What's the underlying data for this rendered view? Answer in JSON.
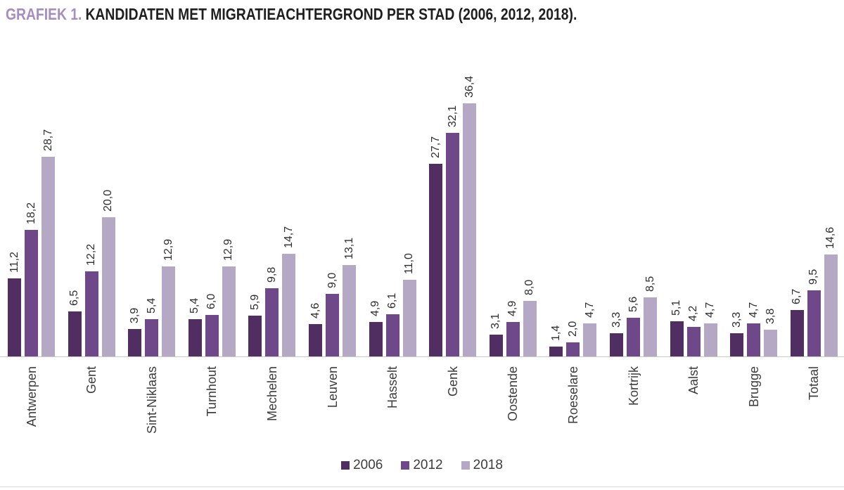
{
  "title": {
    "prefix": "GRAFIEK 1.",
    "text": "KANDIDATEN MET MIGRATIEACHTERGROND PER STAD (2006, 2012, 2018)."
  },
  "colors": {
    "title_prefix": "#a78cc1",
    "title_text": "#1f1f1f",
    "axis_line": "#c9c9c9",
    "value_label_text": "#2e2e2e",
    "category_label_text": "#3d3d3d"
  },
  "chart_data": {
    "type": "bar",
    "title": "GRAFIEK 1. KANDIDATEN MET MIGRATIEACHTERGROND PER STAD (2006, 2012, 2018).",
    "categories": [
      "Antwerpen",
      "Gent",
      "Sint-Niklaas",
      "Turnhout",
      "Mechelen",
      "Leuven",
      "Hasselt",
      "Genk",
      "Oostende",
      "Roeselare",
      "Kortrijk",
      "Aalst",
      "Brugge",
      "Totaal"
    ],
    "series": [
      {
        "name": "2006",
        "color": "#502e61",
        "values": [
          11.2,
          6.5,
          3.9,
          5.4,
          5.9,
          4.6,
          4.9,
          27.7,
          3.1,
          1.4,
          3.3,
          5.1,
          3.3,
          6.7
        ]
      },
      {
        "name": "2012",
        "color": "#6f4889",
        "values": [
          18.2,
          12.2,
          5.4,
          6.0,
          9.8,
          9.0,
          6.1,
          32.1,
          4.9,
          2.0,
          5.6,
          4.2,
          4.7,
          9.5
        ]
      },
      {
        "name": "2018",
        "color": "#b4a8c5",
        "values": [
          28.7,
          20.0,
          12.9,
          12.9,
          14.7,
          13.1,
          11.0,
          36.4,
          8.0,
          4.7,
          8.5,
          4.7,
          3.8,
          14.6
        ]
      }
    ],
    "xlabel": "",
    "ylabel": "",
    "ylim": [
      0,
      36.4
    ],
    "grid": false,
    "y_axis_visible": false,
    "value_labels": "above-bars-rotated-90",
    "value_label_format": "decimal-comma-1",
    "category_label_rotation": 90,
    "legend_position": "bottom-center",
    "legend_labels": [
      "2006",
      "2012",
      "2018"
    ]
  }
}
